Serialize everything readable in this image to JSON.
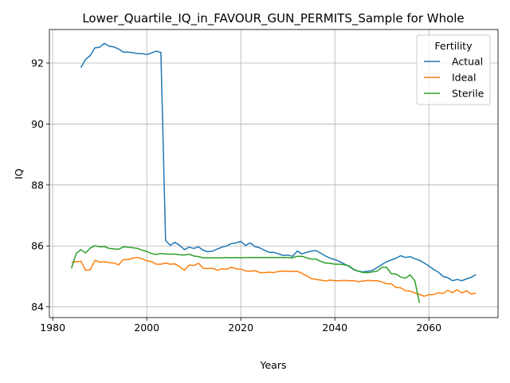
{
  "chart_data": {
    "type": "line",
    "title": "Lower_Quartile_IQ_in_FAVOUR_GUN_PERMITS_Sample for Whole",
    "xlabel": "Years",
    "ylabel": "IQ",
    "xlim": [
      1979.3,
      2074.7
    ],
    "ylim": [
      83.65,
      93.1
    ],
    "xticks": [
      1980,
      2000,
      2020,
      2040,
      2060
    ],
    "yticks": [
      84,
      86,
      88,
      90,
      92
    ],
    "grid": true,
    "legend": {
      "title": "Fertility",
      "placement": "top-right"
    },
    "series": [
      {
        "name": "Actual",
        "color": "#1f77b4",
        "x": [
          1986,
          1987,
          1988,
          1989,
          1990,
          1991,
          1992,
          1993,
          1994,
          1995,
          1996,
          1997,
          1998,
          1999,
          2000,
          2001,
          2002,
          2003,
          2004,
          2005,
          2006,
          2007,
          2008,
          2009,
          2010,
          2011,
          2012,
          2013,
          2014,
          2015,
          2016,
          2017,
          2018,
          2019,
          2020,
          2021,
          2022,
          2023,
          2024,
          2025,
          2026,
          2027,
          2028,
          2029,
          2030,
          2031,
          2032,
          2033,
          2034,
          2035,
          2036,
          2037,
          2038,
          2039,
          2040,
          2041,
          2042,
          2043,
          2044,
          2045,
          2046,
          2047,
          2048,
          2049,
          2050,
          2051,
          2052,
          2053,
          2054,
          2055,
          2056,
          2057,
          2058,
          2059,
          2060,
          2061,
          2062,
          2063,
          2064,
          2065,
          2066,
          2067,
          2068,
          2069,
          2070
        ],
        "y": [
          91.85,
          92.12,
          92.25,
          92.5,
          92.52,
          92.65,
          92.55,
          92.53,
          92.46,
          92.36,
          92.36,
          92.34,
          92.31,
          92.31,
          92.28,
          92.33,
          92.39,
          92.35,
          86.18,
          86.02,
          86.12,
          86.02,
          85.88,
          85.96,
          85.92,
          85.97,
          85.86,
          85.81,
          85.83,
          85.9,
          85.96,
          86.0,
          86.08,
          86.1,
          86.15,
          86.01,
          86.1,
          85.98,
          85.94,
          85.86,
          85.79,
          85.79,
          85.74,
          85.69,
          85.7,
          85.66,
          85.83,
          85.74,
          85.79,
          85.83,
          85.85,
          85.76,
          85.67,
          85.6,
          85.55,
          85.49,
          85.41,
          85.33,
          85.22,
          85.17,
          85.15,
          85.17,
          85.2,
          85.29,
          85.39,
          85.48,
          85.54,
          85.6,
          85.68,
          85.62,
          85.65,
          85.58,
          85.53,
          85.44,
          85.34,
          85.23,
          85.14,
          85.0,
          84.96,
          84.86,
          84.9,
          84.86,
          84.92,
          84.97,
          85.06
        ]
      },
      {
        "name": "Ideal",
        "color": "#ff7f0e",
        "x": [
          1984,
          1985,
          1986,
          1987,
          1988,
          1989,
          1990,
          1991,
          1992,
          1993,
          1994,
          1995,
          1996,
          1997,
          1998,
          1999,
          2000,
          2001,
          2002,
          2003,
          2004,
          2005,
          2006,
          2007,
          2008,
          2009,
          2010,
          2011,
          2012,
          2013,
          2014,
          2015,
          2016,
          2017,
          2018,
          2019,
          2020,
          2021,
          2022,
          2023,
          2024,
          2025,
          2026,
          2027,
          2028,
          2029,
          2030,
          2031,
          2032,
          2033,
          2034,
          2035,
          2036,
          2037,
          2038,
          2039,
          2040,
          2041,
          2042,
          2043,
          2044,
          2045,
          2046,
          2047,
          2048,
          2049,
          2050,
          2051,
          2052,
          2053,
          2054,
          2055,
          2056,
          2057,
          2058,
          2059,
          2060,
          2061,
          2062,
          2063,
          2064,
          2065,
          2066,
          2067,
          2068,
          2069,
          2070
        ],
        "y": [
          85.47,
          85.48,
          85.5,
          85.2,
          85.22,
          85.53,
          85.47,
          85.48,
          85.45,
          85.44,
          85.38,
          85.55,
          85.55,
          85.6,
          85.62,
          85.58,
          85.51,
          85.49,
          85.4,
          85.4,
          85.44,
          85.4,
          85.41,
          85.32,
          85.2,
          85.37,
          85.36,
          85.43,
          85.27,
          85.26,
          85.27,
          85.2,
          85.25,
          85.24,
          85.3,
          85.25,
          85.24,
          85.18,
          85.17,
          85.19,
          85.13,
          85.12,
          85.14,
          85.13,
          85.16,
          85.18,
          85.16,
          85.16,
          85.17,
          85.1,
          85.02,
          84.93,
          84.9,
          84.88,
          84.85,
          84.88,
          84.86,
          84.86,
          84.87,
          84.86,
          84.86,
          84.83,
          84.85,
          84.87,
          84.86,
          84.86,
          84.82,
          84.76,
          84.76,
          84.64,
          84.63,
          84.53,
          84.52,
          84.46,
          84.41,
          84.35,
          84.4,
          84.4,
          84.47,
          84.44,
          84.54,
          84.47,
          84.56,
          84.46,
          84.53,
          84.42,
          84.46
        ]
      },
      {
        "name": "Sterile",
        "color": "#2ca02c",
        "x": [
          1984,
          1985,
          1986,
          1987,
          1988,
          1989,
          1990,
          1991,
          1992,
          1993,
          1994,
          1995,
          1996,
          1997,
          1998,
          1999,
          2000,
          2001,
          2002,
          2003,
          2004,
          2005,
          2006,
          2007,
          2008,
          2009,
          2010,
          2011,
          2012,
          2013,
          2014,
          2015,
          2016,
          2017,
          2018,
          2019,
          2020,
          2021,
          2022,
          2023,
          2024,
          2025,
          2026,
          2027,
          2028,
          2029,
          2030,
          2031,
          2032,
          2033,
          2034,
          2035,
          2036,
          2037,
          2038,
          2039,
          2040,
          2041,
          2042,
          2043,
          2044,
          2045,
          2046,
          2047,
          2048,
          2049,
          2050,
          2051,
          2052,
          2053,
          2054,
          2055,
          2056,
          2057,
          2058
        ],
        "y": [
          85.27,
          85.75,
          85.88,
          85.77,
          85.93,
          86.01,
          85.97,
          85.98,
          85.92,
          85.9,
          85.89,
          85.97,
          85.96,
          85.94,
          85.92,
          85.86,
          85.82,
          85.75,
          85.72,
          85.75,
          85.74,
          85.73,
          85.73,
          85.71,
          85.7,
          85.73,
          85.67,
          85.65,
          85.61,
          85.61,
          85.61,
          85.61,
          85.61,
          85.62,
          85.61,
          85.62,
          85.61,
          85.62,
          85.62,
          85.62,
          85.62,
          85.62,
          85.62,
          85.62,
          85.62,
          85.62,
          85.62,
          85.61,
          85.66,
          85.66,
          85.61,
          85.57,
          85.57,
          85.49,
          85.44,
          85.43,
          85.4,
          85.4,
          85.38,
          85.35,
          85.23,
          85.17,
          85.13,
          85.12,
          85.15,
          85.17,
          85.3,
          85.3,
          85.09,
          85.08,
          84.98,
          84.94,
          85.05,
          84.86,
          84.13
        ]
      }
    ]
  }
}
